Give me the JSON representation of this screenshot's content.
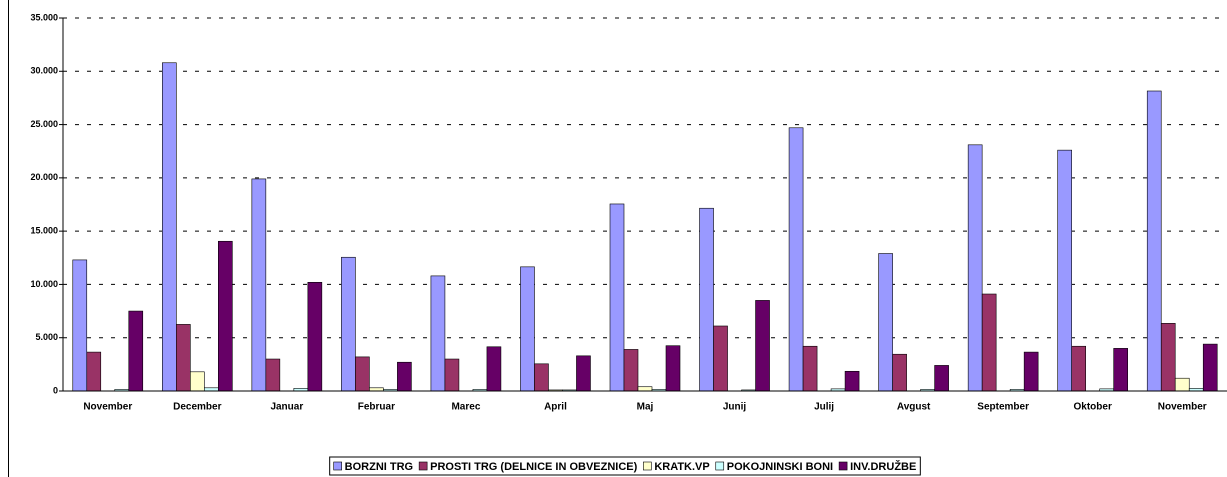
{
  "chart_data": {
    "type": "bar",
    "categories": [
      "November",
      "December",
      "Januar",
      "Februar",
      "Marec",
      "April",
      "Maj",
      "Junij",
      "Julij",
      "Avgust",
      "September",
      "Oktober",
      "November"
    ],
    "series": [
      {
        "name": "BORZNI TRG",
        "color": "#9999ff",
        "values": [
          12300,
          30800,
          19900,
          12550,
          10800,
          11650,
          17550,
          17150,
          24700,
          12900,
          23100,
          22600,
          28150
        ]
      },
      {
        "name": "PROSTI TRG (DELNICE IN OBVEZNICE)",
        "color": "#993366",
        "values": [
          3650,
          6250,
          3000,
          3200,
          3000,
          2550,
          3900,
          6100,
          4200,
          3450,
          9100,
          4200,
          6350
        ]
      },
      {
        "name": "KRATK.VP",
        "color": "#ffffcc",
        "values": [
          0,
          1800,
          0,
          300,
          0,
          100,
          400,
          0,
          0,
          0,
          0,
          0,
          1200
        ]
      },
      {
        "name": "POKOJNINSKI BONI",
        "color": "#ccffff",
        "values": [
          150,
          300,
          250,
          150,
          150,
          100,
          150,
          100,
          200,
          150,
          150,
          200,
          250
        ]
      },
      {
        "name": "INV.DRUŽBE",
        "color": "#660066",
        "values": [
          7500,
          14050,
          10200,
          2700,
          4150,
          3300,
          4250,
          8500,
          1850,
          2400,
          3650,
          4000,
          4400
        ]
      }
    ],
    "ylim": [
      0,
      35000
    ],
    "yticks": [
      0,
      {
        "value": 5000,
        "label": "5.000"
      },
      {
        "value": 10000,
        "label": "10.000"
      },
      {
        "value": 15000,
        "label": "15.000"
      },
      {
        "value": 20000,
        "label": "20.000"
      },
      {
        "value": 25000,
        "label": "25.000"
      },
      {
        "value": 30000,
        "label": "30.000"
      },
      {
        "value": 35000,
        "label": "35.000"
      }
    ],
    "grid": true,
    "legend": "bottom"
  }
}
